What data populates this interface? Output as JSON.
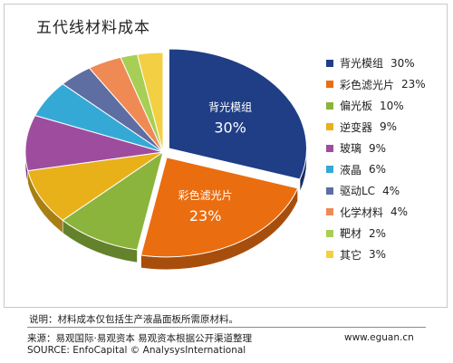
{
  "chart_data": {
    "type": "pie",
    "title": "五代线材料成本",
    "categories": [
      "背光模组",
      "彩色滤光片",
      "偏光板",
      "逆变器",
      "玻璃",
      "液晶",
      "驱动LC",
      "化学材料",
      "靶材",
      "其它"
    ],
    "values": [
      30,
      23,
      10,
      9,
      9,
      6,
      4,
      4,
      2,
      3
    ],
    "value_labels": [
      "30%",
      "23%",
      "10%",
      "9%",
      "9%",
      "6%",
      "4%",
      "4%",
      "2%",
      "3%"
    ],
    "slice_labels": [
      {
        "name": "背光模组",
        "value": "30%"
      },
      {
        "name": "彩色滤光片",
        "value": "23%"
      }
    ],
    "colors": [
      "#1f3e86",
      "#ea6d10",
      "#8bb43c",
      "#e8b11a",
      "#9e4d9e",
      "#35a9d6",
      "#5e6ea2",
      "#ef8a55",
      "#a7cf55",
      "#f3cf43"
    ],
    "legend_position": "right"
  },
  "footer": {
    "note": "说明：材料成本仅包括生产液晶面板所需原材料。",
    "source_cn": "来源：易观国际·易观资本 易观资本根据公开渠道整理",
    "source_en": "SOURCE: EnfoCapital © AnalysysInternational",
    "website": "www.eguan.cn"
  }
}
